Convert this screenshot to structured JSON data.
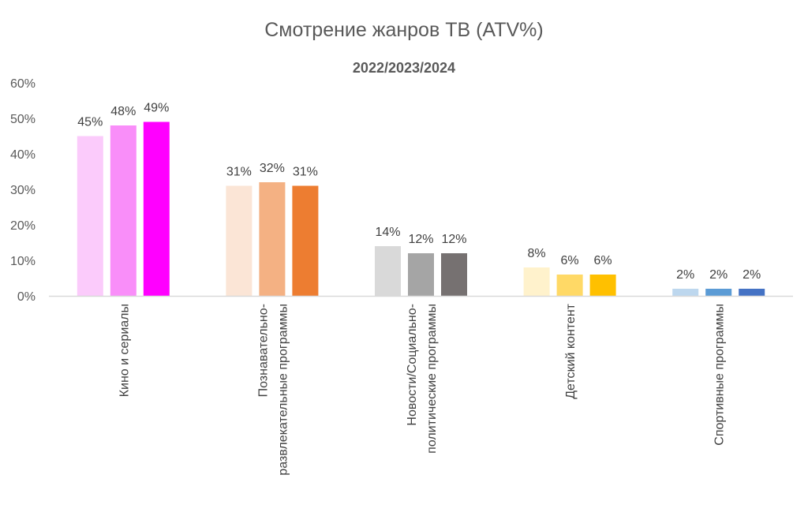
{
  "chart_data": {
    "type": "bar",
    "title": "Смотрение жанров ТВ (ATV%)",
    "subtitle": "2022/2023/2024",
    "ylim": [
      0,
      60
    ],
    "yticks": [
      "0%",
      "10%",
      "20%",
      "30%",
      "40%",
      "50%",
      "60%"
    ],
    "grid": false,
    "legend": "none",
    "categories": [
      {
        "label_lines": [
          "Кино и сериалы"
        ],
        "values": [
          45,
          48,
          49
        ],
        "value_labels": [
          "45%",
          "48%",
          "49%"
        ],
        "colors": [
          "#FBCBFB",
          "#F98EF9",
          "#FF00FF"
        ]
      },
      {
        "label_lines": [
          "Познавательно-",
          "развлекательные программы"
        ],
        "values": [
          31,
          32,
          31
        ],
        "value_labels": [
          "31%",
          "32%",
          "31%"
        ],
        "colors": [
          "#FBE5D6",
          "#F4B183",
          "#ED7D31"
        ]
      },
      {
        "label_lines": [
          "Новости/Социально-",
          "политические программы"
        ],
        "values": [
          14,
          12,
          12
        ],
        "value_labels": [
          "14%",
          "12%",
          "12%"
        ],
        "colors": [
          "#D9D9D9",
          "#A5A5A5",
          "#767171"
        ]
      },
      {
        "label_lines": [
          "Детский контент"
        ],
        "values": [
          8,
          6,
          6
        ],
        "value_labels": [
          "8%",
          "6%",
          "6%"
        ],
        "colors": [
          "#FFF2CC",
          "#FFD966",
          "#FFC000"
        ]
      },
      {
        "label_lines": [
          "Спортивные программы"
        ],
        "values": [
          2,
          2,
          2
        ],
        "value_labels": [
          "2%",
          "2%",
          "2%"
        ],
        "colors": [
          "#BDD7EE",
          "#5B9BD5",
          "#4472C4"
        ]
      }
    ],
    "axis_color": "#D9D9D9"
  }
}
